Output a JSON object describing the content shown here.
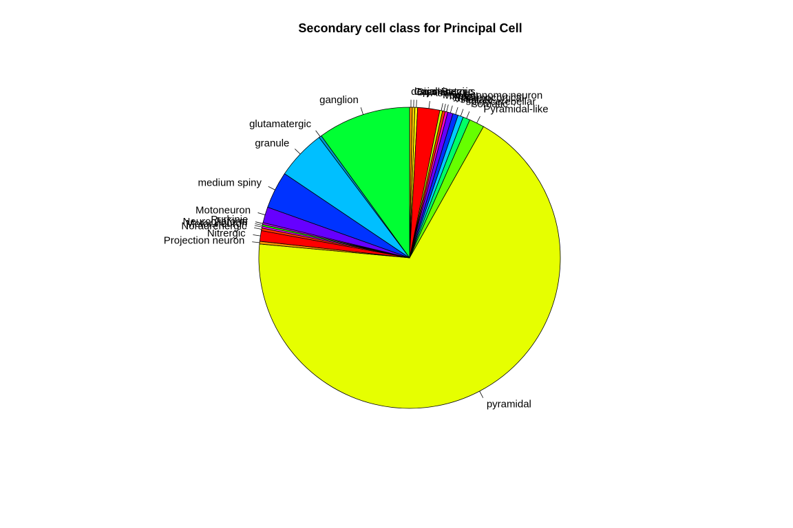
{
  "chart_data": {
    "type": "pie",
    "title": "Secondary cell class for Principal Cell",
    "direction": "clockwise",
    "start_angle_deg": 90,
    "slices": [
      {
        "label": "dopaminergic",
        "value": 0.3,
        "color": "#FF9900"
      },
      {
        "label": "Cajal-Retzius",
        "value": 0.3,
        "color": "#FFCC00"
      },
      {
        "label": "Bipolar",
        "value": 0.3,
        "color": "#FFFF00"
      },
      {
        "label": "Aspiny",
        "value": 2.5,
        "color": "#FF0000"
      },
      {
        "label": "von Economo neuron",
        "value": 0.3,
        "color": "#CCFF00"
      },
      {
        "label": "Type II",
        "value": 0.3,
        "color": "#FF3300"
      },
      {
        "label": "Type I",
        "value": 0.3,
        "color": "#FF00CC"
      },
      {
        "label": "thalamocortical",
        "value": 0.6,
        "color": "#6600FF"
      },
      {
        "label": "stellate",
        "value": 0.6,
        "color": "#0033FF"
      },
      {
        "label": "spinocerebellar",
        "value": 0.6,
        "color": "#00CCFF"
      },
      {
        "label": "somatic",
        "value": 0.8,
        "color": "#00FF66"
      },
      {
        "label": "Pyramidal-like",
        "value": 1.7,
        "color": "#66FF00"
      },
      {
        "label": "pyramidal",
        "value": 72.0,
        "color": "#E6FF00"
      },
      {
        "label": "Projection neuron",
        "value": 0.3,
        "color": "#FF9900"
      },
      {
        "label": "Nitrergic",
        "value": 1.2,
        "color": "#FF0000"
      },
      {
        "label": "Noradrenergic",
        "value": 0.3,
        "color": "#FF3300"
      },
      {
        "label": "Motor neuron",
        "value": 0.2,
        "color": "#FF00FF"
      },
      {
        "label": "Neurogliaform",
        "value": 0.2,
        "color": "#33FF00"
      },
      {
        "label": "Purkinje",
        "value": 0.2,
        "color": "#CC00FF"
      },
      {
        "label": "Motoneuron",
        "value": 1.8,
        "color": "#6600FF"
      },
      {
        "label": "medium spiny",
        "value": 4.2,
        "color": "#0033FF"
      },
      {
        "label": "granule",
        "value": 5.6,
        "color": "#00BFFF"
      },
      {
        "label": "glutamatergic",
        "value": 0.3,
        "color": "#0099CC"
      },
      {
        "label": "ganglion",
        "value": 10.5,
        "color": "#00FF33"
      }
    ]
  }
}
